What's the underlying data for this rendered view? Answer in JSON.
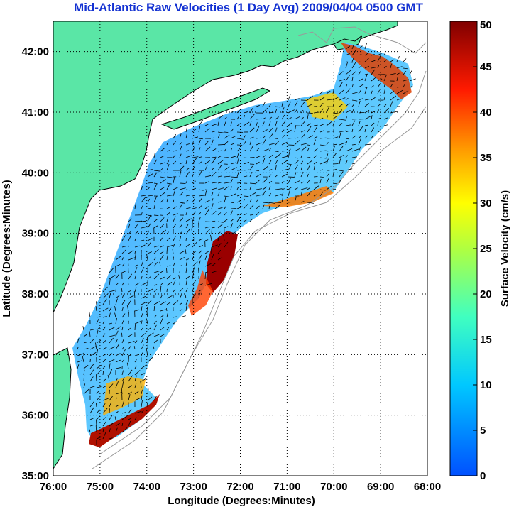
{
  "title": "Mid-Atlantic Raw Velocities (1 Day Avg) 2009/04/04 0500 GMT",
  "xlabel": "Longitude (Degrees:Minutes)",
  "ylabel": "Latitude (Degrees:Minutes)",
  "x_ticks": [
    "76:00",
    "75:00",
    "74:00",
    "73:00",
    "72:00",
    "71:00",
    "70:00",
    "69:00",
    "68:00"
  ],
  "y_ticks": [
    "42:00",
    "41:00",
    "40:00",
    "39:00",
    "38:00",
    "37:00",
    "36:00",
    "35:00"
  ],
  "colorbar": {
    "label": "Surface Velocity (cm/s)",
    "ticks": [
      "50",
      "45",
      "40",
      "35",
      "30",
      "25",
      "20",
      "15",
      "10",
      "5",
      "0"
    ],
    "min": 0,
    "max": 50,
    "colormap": "jet"
  },
  "colors": {
    "title": "#1432d2",
    "land": "#5ae6a6",
    "bathymetry": "#999999",
    "background": "#ffffff"
  },
  "extent": {
    "lon_min": -76,
    "lon_max": -68,
    "lat_min": 35,
    "lat_max": 42.5
  }
}
